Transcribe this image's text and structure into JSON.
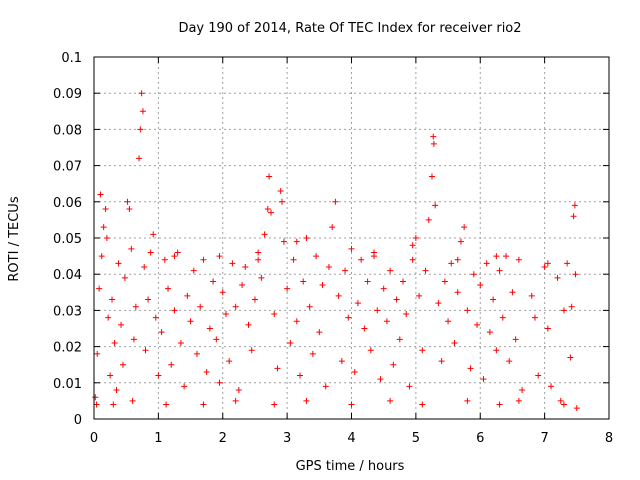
{
  "chart_data": {
    "type": "scatter",
    "title": "Day 190 of 2014, Rate Of TEC Index for receiver rio2",
    "xlabel": "GPS time / hours",
    "ylabel": "ROTI / TECUs",
    "xlim": [
      0,
      8
    ],
    "ylim": [
      0,
      0.1
    ],
    "xticks": [
      "0",
      "1",
      "2",
      "3",
      "4",
      "5",
      "6",
      "7",
      "8"
    ],
    "yticks": [
      "0",
      "0.01",
      "0.02",
      "0.03",
      "0.04",
      "0.05",
      "0.06",
      "0.07",
      "0.08",
      "0.09",
      "0.1"
    ],
    "grid": true,
    "marker": "plus",
    "color": "#ff0000",
    "series": [
      {
        "values": [
          [
            0.02,
            0.006
          ],
          [
            0.05,
            0.018
          ],
          [
            0.08,
            0.036
          ],
          [
            0.1,
            0.062
          ],
          [
            0.12,
            0.045
          ],
          [
            0.15,
            0.053
          ],
          [
            0.18,
            0.058
          ],
          [
            0.22,
            0.028
          ],
          [
            0.25,
            0.012
          ],
          [
            0.28,
            0.033
          ],
          [
            0.32,
            0.021
          ],
          [
            0.35,
            0.008
          ],
          [
            0.38,
            0.043
          ],
          [
            0.42,
            0.026
          ],
          [
            0.45,
            0.015
          ],
          [
            0.48,
            0.039
          ],
          [
            0.52,
            0.06
          ],
          [
            0.55,
            0.058
          ],
          [
            0.58,
            0.047
          ],
          [
            0.62,
            0.022
          ],
          [
            0.65,
            0.031
          ],
          [
            0.7,
            0.072
          ],
          [
            0.72,
            0.08
          ],
          [
            0.74,
            0.09
          ],
          [
            0.76,
            0.085
          ],
          [
            0.78,
            0.042
          ],
          [
            0.8,
            0.019
          ],
          [
            0.84,
            0.033
          ],
          [
            0.88,
            0.046
          ],
          [
            0.92,
            0.051
          ],
          [
            0.96,
            0.028
          ],
          [
            1.0,
            0.012
          ],
          [
            1.05,
            0.024
          ],
          [
            1.1,
            0.044
          ],
          [
            1.15,
            0.036
          ],
          [
            1.2,
            0.015
          ],
          [
            1.25,
            0.03
          ],
          [
            1.3,
            0.046
          ],
          [
            1.35,
            0.021
          ],
          [
            1.4,
            0.009
          ],
          [
            1.45,
            0.034
          ],
          [
            1.5,
            0.027
          ],
          [
            1.55,
            0.041
          ],
          [
            1.6,
            0.018
          ],
          [
            1.65,
            0.031
          ],
          [
            1.7,
            0.044
          ],
          [
            1.75,
            0.013
          ],
          [
            1.8,
            0.025
          ],
          [
            1.85,
            0.038
          ],
          [
            1.9,
            0.022
          ],
          [
            1.95,
            0.01
          ],
          [
            2.0,
            0.035
          ],
          [
            2.05,
            0.029
          ],
          [
            2.1,
            0.016
          ],
          [
            2.15,
            0.043
          ],
          [
            2.2,
            0.031
          ],
          [
            2.25,
            0.008
          ],
          [
            2.3,
            0.037
          ],
          [
            2.35,
            0.042
          ],
          [
            2.4,
            0.026
          ],
          [
            2.45,
            0.019
          ],
          [
            2.5,
            0.033
          ],
          [
            2.55,
            0.046
          ],
          [
            2.6,
            0.039
          ],
          [
            2.65,
            0.051
          ],
          [
            2.7,
            0.058
          ],
          [
            2.72,
            0.067
          ],
          [
            2.75,
            0.057
          ],
          [
            2.8,
            0.029
          ],
          [
            2.85,
            0.014
          ],
          [
            2.9,
            0.063
          ],
          [
            2.92,
            0.06
          ],
          [
            2.95,
            0.049
          ],
          [
            3.0,
            0.036
          ],
          [
            3.05,
            0.021
          ],
          [
            3.1,
            0.044
          ],
          [
            3.15,
            0.027
          ],
          [
            3.2,
            0.012
          ],
          [
            3.25,
            0.038
          ],
          [
            3.3,
            0.05
          ],
          [
            3.35,
            0.031
          ],
          [
            3.4,
            0.018
          ],
          [
            3.45,
            0.045
          ],
          [
            3.5,
            0.024
          ],
          [
            3.55,
            0.037
          ],
          [
            3.6,
            0.009
          ],
          [
            3.65,
            0.042
          ],
          [
            3.7,
            0.053
          ],
          [
            3.75,
            0.06
          ],
          [
            3.8,
            0.034
          ],
          [
            3.85,
            0.016
          ],
          [
            3.9,
            0.041
          ],
          [
            3.95,
            0.028
          ],
          [
            4.0,
            0.047
          ],
          [
            4.05,
            0.013
          ],
          [
            4.1,
            0.032
          ],
          [
            4.15,
            0.044
          ],
          [
            4.2,
            0.025
          ],
          [
            4.25,
            0.038
          ],
          [
            4.3,
            0.019
          ],
          [
            4.35,
            0.046
          ],
          [
            4.4,
            0.03
          ],
          [
            4.45,
            0.011
          ],
          [
            4.5,
            0.036
          ],
          [
            4.55,
            0.027
          ],
          [
            4.6,
            0.041
          ],
          [
            4.65,
            0.015
          ],
          [
            4.7,
            0.033
          ],
          [
            4.75,
            0.022
          ],
          [
            4.8,
            0.038
          ],
          [
            4.85,
            0.029
          ],
          [
            4.9,
            0.009
          ],
          [
            4.95,
            0.044
          ],
          [
            5.0,
            0.05
          ],
          [
            5.05,
            0.034
          ],
          [
            5.1,
            0.019
          ],
          [
            5.15,
            0.041
          ],
          [
            5.2,
            0.055
          ],
          [
            5.25,
            0.067
          ],
          [
            5.27,
            0.078
          ],
          [
            5.28,
            0.076
          ],
          [
            5.3,
            0.059
          ],
          [
            5.35,
            0.032
          ],
          [
            5.4,
            0.016
          ],
          [
            5.45,
            0.038
          ],
          [
            5.5,
            0.027
          ],
          [
            5.55,
            0.043
          ],
          [
            5.6,
            0.021
          ],
          [
            5.65,
            0.035
          ],
          [
            5.7,
            0.049
          ],
          [
            5.75,
            0.053
          ],
          [
            5.8,
            0.03
          ],
          [
            5.85,
            0.014
          ],
          [
            5.9,
            0.04
          ],
          [
            5.95,
            0.026
          ],
          [
            6.0,
            0.037
          ],
          [
            6.05,
            0.011
          ],
          [
            6.1,
            0.043
          ],
          [
            6.15,
            0.024
          ],
          [
            6.2,
            0.033
          ],
          [
            6.25,
            0.019
          ],
          [
            6.3,
            0.041
          ],
          [
            6.35,
            0.028
          ],
          [
            6.4,
            0.045
          ],
          [
            6.45,
            0.016
          ],
          [
            6.5,
            0.035
          ],
          [
            6.55,
            0.022
          ],
          [
            6.6,
            0.044
          ],
          [
            6.65,
            0.008
          ],
          [
            6.8,
            0.034
          ],
          [
            6.85,
            0.028
          ],
          [
            6.9,
            0.012
          ],
          [
            7.0,
            0.042
          ],
          [
            7.05,
            0.025
          ],
          [
            7.1,
            0.009
          ],
          [
            7.2,
            0.039
          ],
          [
            7.25,
            0.005
          ],
          [
            7.3,
            0.03
          ],
          [
            7.35,
            0.043
          ],
          [
            7.4,
            0.017
          ],
          [
            7.42,
            0.031
          ],
          [
            7.45,
            0.056
          ],
          [
            7.47,
            0.059
          ],
          [
            7.48,
            0.04
          ],
          [
            7.5,
            0.003
          ],
          [
            0.04,
            0.004
          ],
          [
            0.3,
            0.004
          ],
          [
            0.6,
            0.005
          ],
          [
            1.12,
            0.004
          ],
          [
            1.7,
            0.004
          ],
          [
            2.2,
            0.005
          ],
          [
            2.8,
            0.004
          ],
          [
            3.3,
            0.005
          ],
          [
            4.0,
            0.004
          ],
          [
            4.6,
            0.005
          ],
          [
            5.1,
            0.004
          ],
          [
            5.8,
            0.005
          ],
          [
            6.3,
            0.004
          ],
          [
            6.6,
            0.005
          ],
          [
            7.3,
            0.004
          ],
          [
            0.2,
            0.05
          ],
          [
            1.25,
            0.045
          ],
          [
            1.95,
            0.045
          ],
          [
            2.55,
            0.044
          ],
          [
            3.15,
            0.049
          ],
          [
            4.35,
            0.045
          ],
          [
            4.95,
            0.048
          ],
          [
            5.65,
            0.044
          ],
          [
            6.25,
            0.045
          ],
          [
            7.05,
            0.043
          ]
        ]
      }
    ]
  }
}
